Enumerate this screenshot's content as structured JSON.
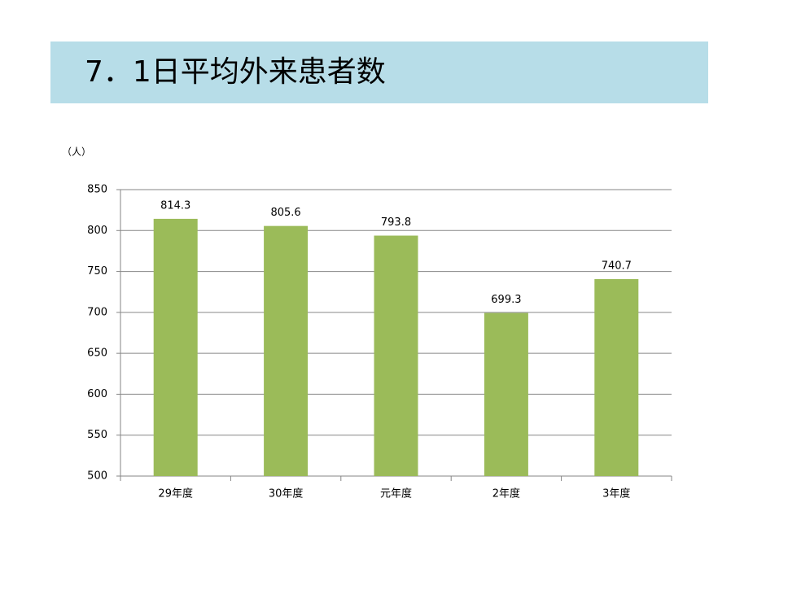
{
  "chart_data": {
    "type": "bar",
    "title": "7．1日平均外来患者数",
    "y_label": "（人）",
    "categories": [
      "29年度",
      "30年度",
      "元年度",
      "2年度",
      "3年度"
    ],
    "values": [
      814.3,
      805.6,
      793.8,
      699.3,
      740.7
    ],
    "color": "#9bbb59",
    "ylim": [
      500,
      850
    ],
    "yticks": [
      500,
      550,
      600,
      650,
      700,
      750,
      800,
      850
    ],
    "grid": true
  }
}
